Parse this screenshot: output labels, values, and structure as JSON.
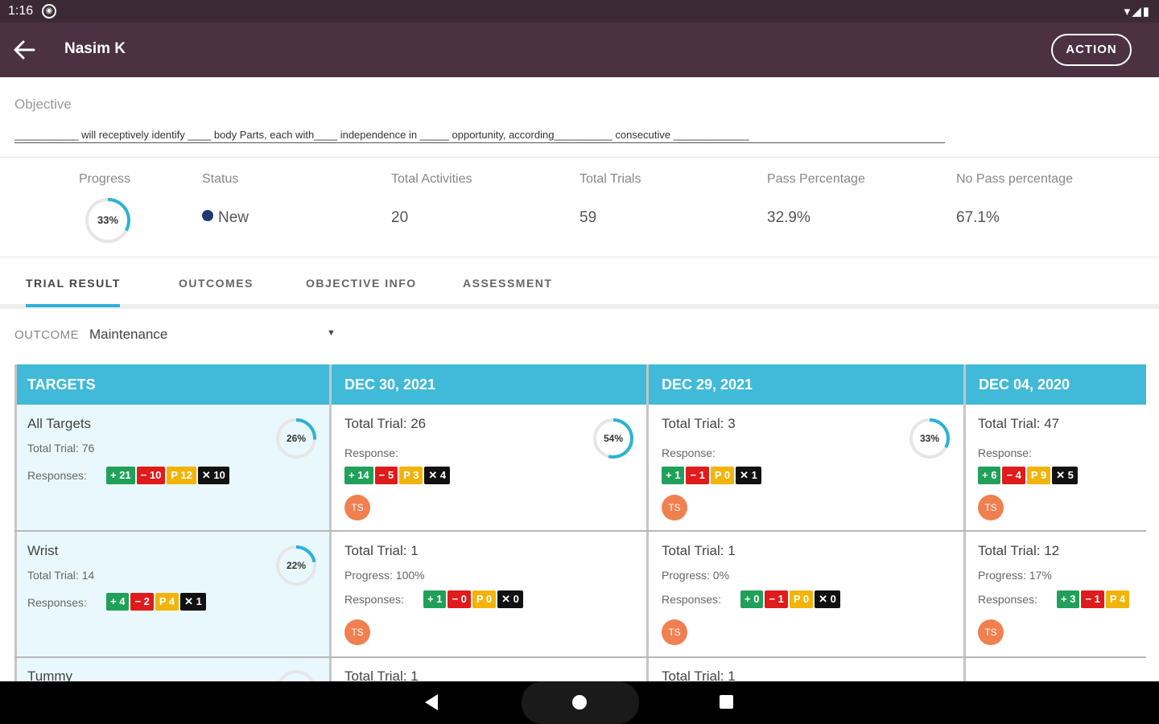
{
  "status_bar": {
    "time": "1:16",
    "notification_icon": "app-notification-icon",
    "system_icons": "▾◢▮"
  },
  "app_bar": {
    "back_icon": "arrow-back-icon",
    "title": "Nasim K",
    "action_label": "ACTION"
  },
  "objective": {
    "label": "Objective",
    "text": "___________ will receptively identify ____ body Parts, each with____ independence in _____ opportunity, according__________ consecutive _____________"
  },
  "stats": {
    "progress_label": "Progress",
    "progress_value": "33%",
    "progress_fraction": 0.33,
    "status_label": "Status",
    "status_value": "New",
    "total_activities_label": "Total Activities",
    "total_activities_value": "20",
    "total_trials_label": "Total Trials",
    "total_trials_value": "59",
    "pass_label": "Pass Percentage",
    "pass_value": "32.9%",
    "nopass_label": "No Pass percentage",
    "nopass_value": "67.1%"
  },
  "tabs": [
    "TRIAL RESULT",
    "OUTCOMES",
    "OBJECTIVE INFO",
    "ASSESSMENT"
  ],
  "outcome": {
    "label": "OUTCOME",
    "value": "Maintenance"
  },
  "grid": {
    "headers": [
      "TARGETS",
      "DEC 30, 2021",
      "DEC 29, 2021",
      "DEC 04, 2020"
    ],
    "row1": {
      "target": {
        "title": "All Targets",
        "sub": "Total Trial:  76",
        "resp_label": "Responses:",
        "ring": "26%",
        "ring_fraction": 0.26,
        "chips": [
          "+ 21",
          "− 10",
          "P 12",
          "✕ 10"
        ]
      },
      "c1": {
        "title": "Total Trial:  26",
        "resp_label": "Response:",
        "ring": "54%",
        "ring_fraction": 0.54,
        "chips": [
          "+ 14",
          "− 5",
          "P 3",
          "✕ 4"
        ],
        "avatar": "TS"
      },
      "c2": {
        "title": "Total Trial:  3",
        "resp_label": "Response:",
        "ring": "33%",
        "ring_fraction": 0.33,
        "chips": [
          "+ 1",
          "− 1",
          "P 0",
          "✕ 1"
        ],
        "avatar": "TS"
      },
      "c3": {
        "title": "Total Trial:  47",
        "resp_label": "Response:",
        "chips": [
          "+ 6",
          "− 4",
          "P 9",
          "✕ 5"
        ],
        "avatar": "TS"
      }
    },
    "row2": {
      "target": {
        "title": "Wrist",
        "sub": "Total Trial:  14",
        "resp_label": "Responses:",
        "ring": "22%",
        "ring_fraction": 0.22,
        "chips": [
          "+ 4",
          "− 2",
          "P 4",
          "✕ 1"
        ]
      },
      "c1": {
        "title": "Total Trial:  1",
        "progress": "Progress:  100%",
        "resp_label": "Responses:",
        "chips": [
          "+ 1",
          "− 0",
          "P 0",
          "✕ 0"
        ],
        "avatar": "TS"
      },
      "c2": {
        "title": "Total Trial:  1",
        "progress": "Progress:  0%",
        "resp_label": "Responses:",
        "chips": [
          "+ 0",
          "− 1",
          "P 0",
          "✕ 0"
        ],
        "avatar": "TS"
      },
      "c3": {
        "title": "Total Trial:  12",
        "progress": "Progress:  17%",
        "resp_label": "Responses:",
        "chips": [
          "+ 3",
          "− 1",
          "P 4"
        ],
        "avatar": "TS"
      }
    },
    "row3": {
      "target": {
        "title": "Tummy"
      },
      "c1": {
        "title": "Total Trial:  1"
      },
      "c2": {
        "title": "Total Trial:  1"
      }
    }
  },
  "nav_bar": {
    "back": "nav-back-icon",
    "home": "nav-home-icon",
    "recents": "nav-recents-icon"
  },
  "colors": {
    "appbar": "#4b3142",
    "header": "#40bad8",
    "positive": "#21a05a",
    "negative": "#e01b1b",
    "prompt": "#f2b40b",
    "incorrect": "#111111",
    "avatar": "#f08050"
  }
}
